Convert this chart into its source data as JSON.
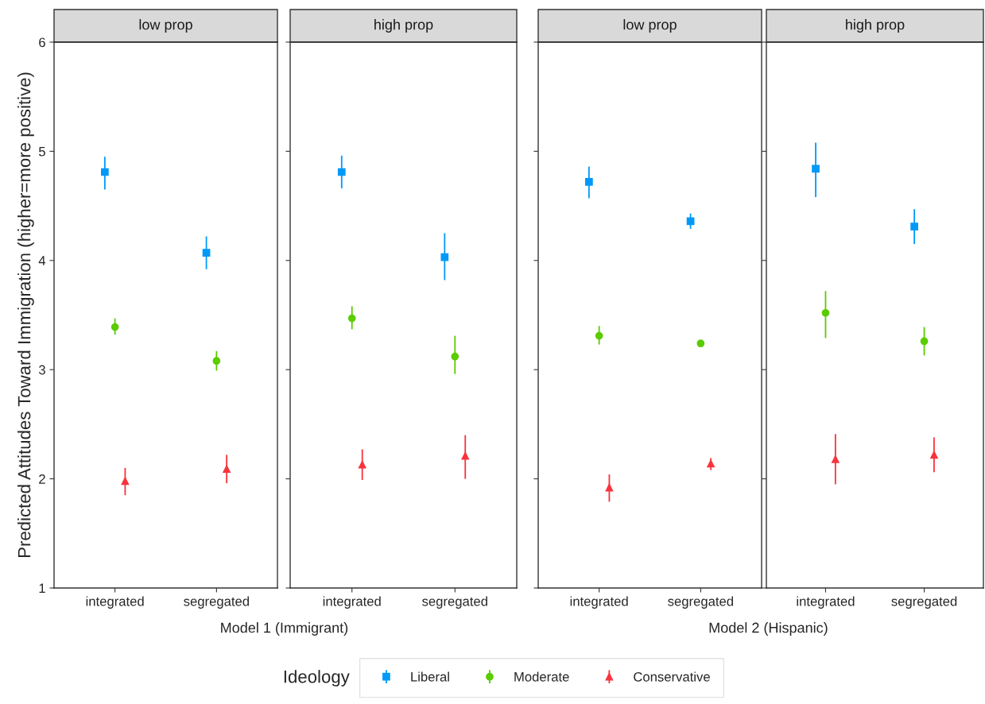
{
  "chart_data": [
    {
      "type": "scatter",
      "title": "low prop",
      "xlabel": "Model 1 (Immigrant)",
      "ylabel": "Predicted Attitudes Toward Immigration (higher=more positive)",
      "legend_title": "Ideology",
      "legend": "bottom",
      "grid": false,
      "categories": [
        "integrated",
        "segregated"
      ],
      "ylim": [
        1,
        6
      ],
      "yticks": [
        1,
        2,
        3,
        4,
        5,
        6
      ],
      "series": [
        {
          "name": "Liberal",
          "color": "#0099f8",
          "marker": "square",
          "values": [
            4.81,
            4.07
          ],
          "errors": [
            [
              4.65,
              4.95
            ],
            [
              3.92,
              4.22
            ]
          ]
        },
        {
          "name": "Moderate",
          "color": "#5bcc00",
          "marker": "circle",
          "values": [
            3.39,
            3.08
          ],
          "errors": [
            [
              3.32,
              3.47
            ],
            [
              2.99,
              3.17
            ]
          ]
        },
        {
          "name": "Conservative",
          "color": "#f8333c",
          "marker": "triangle",
          "values": [
            1.98,
            2.09
          ],
          "errors": [
            [
              1.85,
              2.1
            ],
            [
              1.96,
              2.22
            ]
          ]
        }
      ]
    },
    {
      "type": "scatter",
      "title": "high prop",
      "grid": false,
      "tick_labels": "x",
      "categories": [
        "integrated",
        "segregated"
      ],
      "ylim": [
        1,
        6
      ],
      "yticks": [
        1,
        2,
        3,
        4,
        5,
        6
      ],
      "series": [
        {
          "color": "#0099f8",
          "marker": "square",
          "values": [
            4.81,
            4.03
          ],
          "errors": [
            [
              4.66,
              4.96
            ],
            [
              3.82,
              4.25
            ]
          ]
        },
        {
          "color": "#5bcc00",
          "marker": "circle",
          "values": [
            3.47,
            3.12
          ],
          "errors": [
            [
              3.37,
              3.58
            ],
            [
              2.96,
              3.31
            ]
          ]
        },
        {
          "color": "#f8333c",
          "marker": "triangle",
          "values": [
            2.13,
            2.21
          ],
          "errors": [
            [
              1.99,
              2.27
            ],
            [
              2.0,
              2.4
            ]
          ]
        }
      ]
    },
    {
      "type": "scatter",
      "title": "low prop",
      "xlabel": "Model 2 (Hispanic)",
      "grid": false,
      "tick_labels": "x",
      "categories": [
        "integrated",
        "segregated"
      ],
      "ylim": [
        1,
        6
      ],
      "yticks": [
        1,
        2,
        3,
        4,
        5,
        6
      ],
      "series": [
        {
          "color": "#0099f8",
          "marker": "square",
          "values": [
            4.72,
            4.36
          ],
          "errors": [
            [
              4.57,
              4.86
            ],
            [
              4.29,
              4.43
            ]
          ]
        },
        {
          "color": "#5bcc00",
          "marker": "circle",
          "values": [
            3.31,
            3.24
          ],
          "errors": [
            [
              3.23,
              3.4
            ],
            [
              3.21,
              3.27
            ]
          ]
        },
        {
          "color": "#f8333c",
          "marker": "triangle",
          "values": [
            1.92,
            2.14
          ],
          "errors": [
            [
              1.79,
              2.04
            ],
            [
              2.08,
              2.19
            ]
          ]
        }
      ]
    },
    {
      "type": "scatter",
      "title": "high prop",
      "grid": false,
      "tick_labels": "x",
      "categories": [
        "integrated",
        "segregated"
      ],
      "ylim": [
        1,
        6
      ],
      "yticks": [
        1,
        2,
        3,
        4,
        5,
        6
      ],
      "series": [
        {
          "color": "#0099f8",
          "marker": "square",
          "values": [
            4.84,
            4.31
          ],
          "errors": [
            [
              4.58,
              5.08
            ],
            [
              4.15,
              4.47
            ]
          ]
        },
        {
          "color": "#5bcc00",
          "marker": "circle",
          "values": [
            3.52,
            3.26
          ],
          "errors": [
            [
              3.29,
              3.72
            ],
            [
              3.13,
              3.39
            ]
          ]
        },
        {
          "color": "#f8333c",
          "marker": "triangle",
          "values": [
            2.18,
            2.22
          ],
          "errors": [
            [
              1.95,
              2.41
            ],
            [
              2.06,
              2.38
            ]
          ]
        }
      ]
    }
  ]
}
